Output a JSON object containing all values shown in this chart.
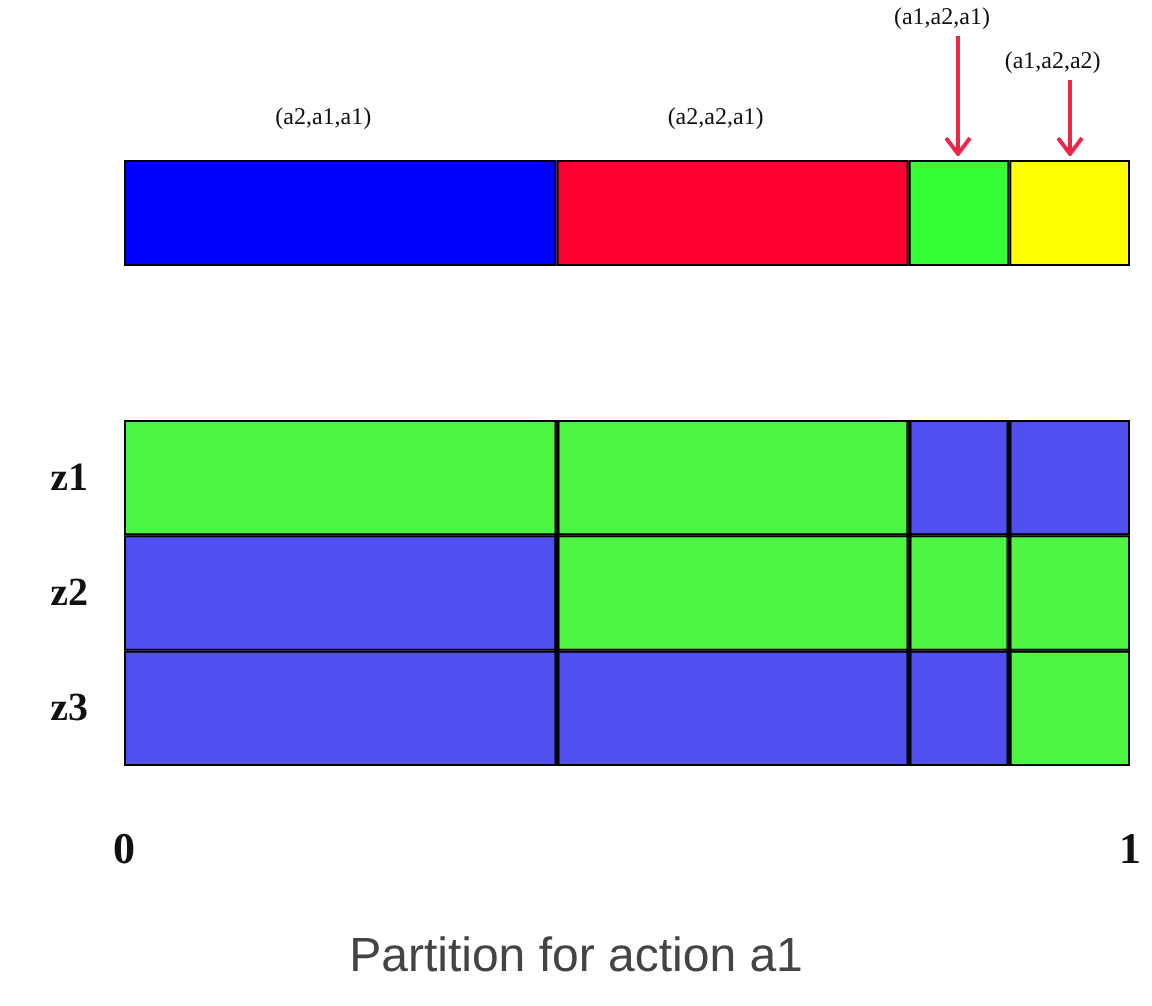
{
  "chart_data": [
    {
      "type": "bar",
      "orientation": "horizontal",
      "stacked": true,
      "categories": [
        null
      ],
      "xlim": [
        0,
        1
      ],
      "grid": false,
      "series": [
        {
          "color": "#0000ff",
          "values": [
            0.43
          ]
        },
        {
          "color": "#ff0033",
          "values": [
            0.35
          ]
        },
        {
          "color": "#33ff33",
          "values": [
            0.1
          ]
        },
        {
          "color": "#ffff00",
          "values": [
            0.12
          ]
        }
      ],
      "annotations": [
        "(a2,a1,a1)",
        "(a2,a2,a1)",
        "(a1,a2,a1)",
        "(a1,a2,a2)"
      ]
    },
    {
      "type": "bar",
      "orientation": "horizontal",
      "stacked": true,
      "title": "Partition for action a1",
      "categories": [
        "z1",
        "z2",
        "z3"
      ],
      "xlim": [
        0,
        1
      ],
      "xticks": [
        0,
        1
      ],
      "grid": false,
      "series": [
        {
          "colors": [
            "#4cf542",
            "#5050f0",
            "#5050f0"
          ],
          "values": [
            0.78,
            0.43,
            0.88
          ]
        },
        {
          "colors": [
            "#5050f0",
            "#4cf542",
            "#4cf542"
          ],
          "values": [
            0.22,
            0.57,
            0.12
          ]
        }
      ],
      "ref_lines": [
        {
          "axis": "x",
          "value": 0.43
        },
        {
          "axis": "x",
          "value": 0.78
        },
        {
          "axis": "x",
          "value": 0.88
        }
      ]
    }
  ]
}
